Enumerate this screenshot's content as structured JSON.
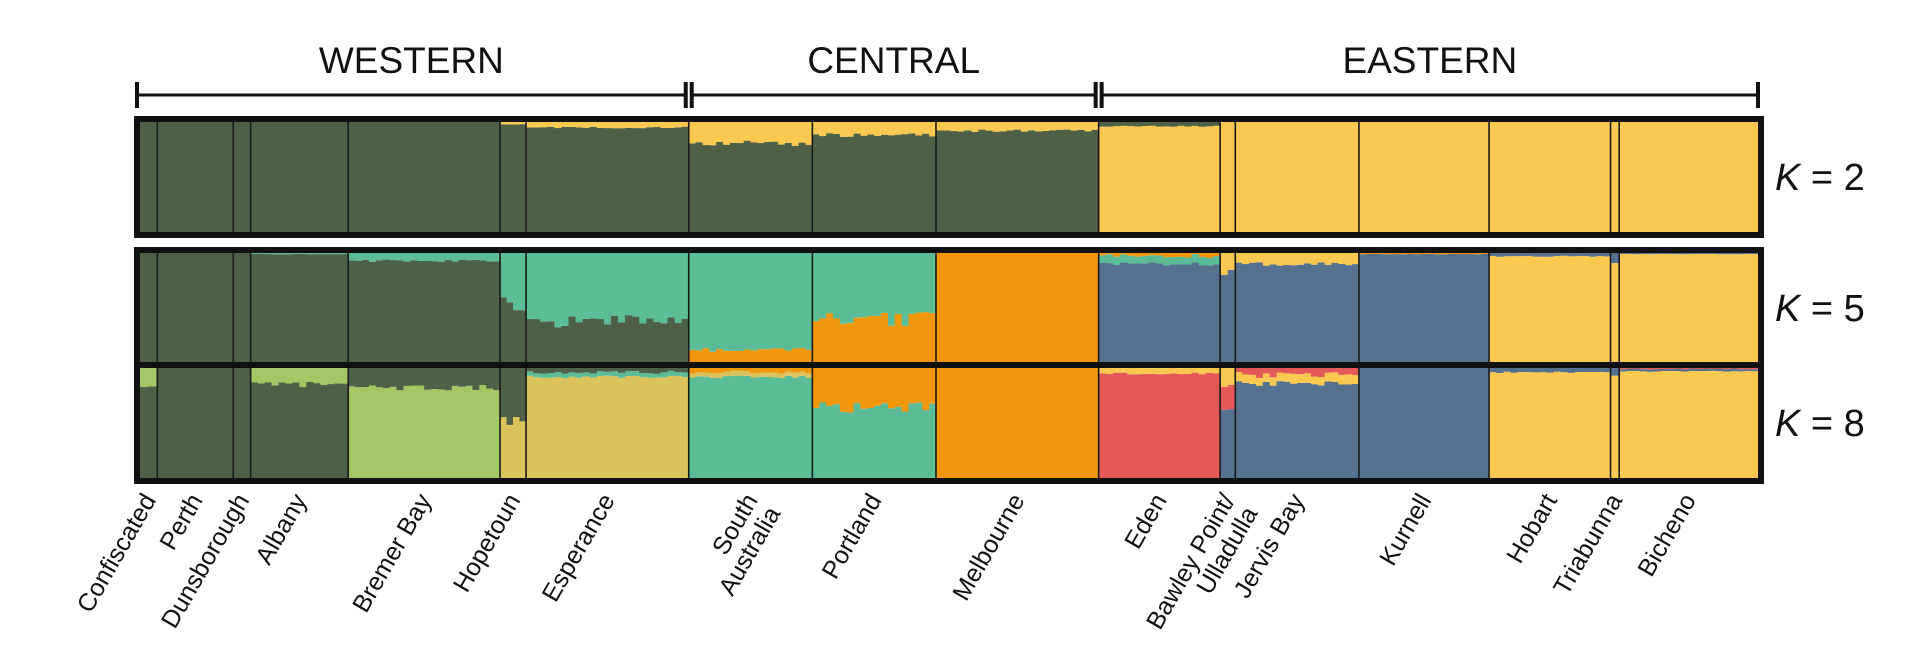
{
  "chart_data": {
    "type": "structure_bar",
    "title": "",
    "regions": [
      {
        "label": "WESTERN",
        "from": 0,
        "to": 6
      },
      {
        "label": "CENTRAL",
        "from": 7,
        "to": 9
      },
      {
        "label": "EASTERN",
        "from": 10,
        "to": 16
      }
    ],
    "populations": [
      {
        "name": "Confiscated",
        "label_lines": [
          "Confiscated"
        ],
        "n": 8
      },
      {
        "name": "Perth",
        "label_lines": [
          "Perth"
        ],
        "n": 35
      },
      {
        "name": "Dunsborough",
        "label_lines": [
          "Dunsborough"
        ],
        "n": 8
      },
      {
        "name": "Albany",
        "label_lines": [
          "Albany"
        ],
        "n": 45
      },
      {
        "name": "Bremer Bay",
        "label_lines": [
          "Bremer Bay"
        ],
        "n": 70
      },
      {
        "name": "Hopetoun",
        "label_lines": [
          "Hopetoun"
        ],
        "n": 12
      },
      {
        "name": "Esperance",
        "label_lines": [
          "Esperance"
        ],
        "n": 75
      },
      {
        "name": "South Australia",
        "label_lines": [
          "South",
          "Australia"
        ],
        "n": 57
      },
      {
        "name": "Portland",
        "label_lines": [
          "Portland"
        ],
        "n": 57
      },
      {
        "name": "Melbourne",
        "label_lines": [
          "Melbourne"
        ],
        "n": 75
      },
      {
        "name": "Eden",
        "label_lines": [
          "Eden"
        ],
        "n": 56
      },
      {
        "name": "Bawley Point/Ulladulla",
        "label_lines": [
          "Bawley Point/",
          "Ulladulla"
        ],
        "n": 7
      },
      {
        "name": "Jervis Bay",
        "label_lines": [
          "Jervis Bay"
        ],
        "n": 57
      },
      {
        "name": "Kurnell",
        "label_lines": [
          "Kurnell"
        ],
        "n": 60
      },
      {
        "name": "Hobart",
        "label_lines": [
          "Hobart"
        ],
        "n": 56
      },
      {
        "name": "Triabunna",
        "label_lines": [
          "Triabunna"
        ],
        "n": 4
      },
      {
        "name": "Bicheno",
        "label_lines": [
          "Bicheno"
        ],
        "n": 64
      }
    ],
    "cluster_colors": {
      "dark_green": "#4e6147",
      "yellow": "#fbc94f",
      "teal": "#5bbd98",
      "orange": "#f2960c",
      "slate_blue": "#56708f",
      "light_green": "#a3c765",
      "khaki": "#d9c35a",
      "red": "#e55858"
    },
    "panels": [
      {
        "k_label": "K = 2",
        "populations": [
          [
            [
              "dark_green",
              1.0
            ]
          ],
          [
            [
              "dark_green",
              1.0
            ]
          ],
          [
            [
              "dark_green",
              1.0
            ]
          ],
          [
            [
              "dark_green",
              1.0
            ]
          ],
          [
            [
              "dark_green",
              1.0
            ]
          ],
          [
            [
              "dark_green",
              0.98
            ],
            [
              "yellow",
              0.02
            ]
          ],
          [
            [
              "dark_green",
              0.95
            ],
            [
              "yellow",
              0.05
            ]
          ],
          [
            [
              "dark_green",
              0.8
            ],
            [
              "yellow",
              0.2
            ]
          ],
          [
            [
              "dark_green",
              0.88
            ],
            [
              "yellow",
              0.12
            ]
          ],
          [
            [
              "dark_green",
              0.92
            ],
            [
              "yellow",
              0.08
            ]
          ],
          [
            [
              "yellow",
              0.96
            ],
            [
              "dark_green",
              0.04
            ]
          ],
          [
            [
              "yellow",
              1.0
            ]
          ],
          [
            [
              "yellow",
              1.0
            ]
          ],
          [
            [
              "yellow",
              1.0
            ]
          ],
          [
            [
              "yellow",
              1.0
            ]
          ],
          [
            [
              "yellow",
              1.0
            ]
          ],
          [
            [
              "yellow",
              1.0
            ]
          ]
        ]
      },
      {
        "k_label": "K = 5",
        "populations": [
          [
            [
              "dark_green",
              1.0
            ]
          ],
          [
            [
              "dark_green",
              1.0
            ]
          ],
          [
            [
              "dark_green",
              1.0
            ]
          ],
          [
            [
              "dark_green",
              0.99
            ],
            [
              "teal",
              0.01
            ]
          ],
          [
            [
              "dark_green",
              0.93
            ],
            [
              "teal",
              0.07
            ]
          ],
          [
            [
              "dark_green",
              0.55
            ],
            [
              "teal",
              0.45
            ]
          ],
          [
            [
              "dark_green",
              0.38
            ],
            [
              "teal",
              0.62
            ]
          ],
          [
            [
              "orange",
              0.12
            ],
            [
              "teal",
              0.88
            ]
          ],
          [
            [
              "orange",
              0.4
            ],
            [
              "teal",
              0.6
            ]
          ],
          [
            [
              "orange",
              1.0
            ]
          ],
          [
            [
              "slate_blue",
              0.9
            ],
            [
              "teal",
              0.07
            ],
            [
              "orange",
              0.03
            ]
          ],
          [
            [
              "slate_blue",
              0.82
            ],
            [
              "yellow",
              0.18
            ]
          ],
          [
            [
              "slate_blue",
              0.9
            ],
            [
              "yellow",
              0.1
            ]
          ],
          [
            [
              "slate_blue",
              0.99
            ],
            [
              "orange",
              0.01
            ]
          ],
          [
            [
              "yellow",
              0.97
            ],
            [
              "slate_blue",
              0.03
            ]
          ],
          [
            [
              "yellow",
              0.92
            ],
            [
              "slate_blue",
              0.08
            ]
          ],
          [
            [
              "yellow",
              0.99
            ],
            [
              "slate_blue",
              0.01
            ]
          ]
        ]
      },
      {
        "k_label": "K = 8",
        "populations": [
          [
            [
              "dark_green",
              0.85
            ],
            [
              "light_green",
              0.15
            ]
          ],
          [
            [
              "dark_green",
              1.0
            ]
          ],
          [
            [
              "dark_green",
              1.0
            ]
          ],
          [
            [
              "dark_green",
              0.85
            ],
            [
              "light_green",
              0.15
            ]
          ],
          [
            [
              "light_green",
              0.82
            ],
            [
              "dark_green",
              0.18
            ]
          ],
          [
            [
              "khaki",
              0.5
            ],
            [
              "dark_green",
              0.5
            ]
          ],
          [
            [
              "khaki",
              0.92
            ],
            [
              "teal",
              0.04
            ],
            [
              "dark_green",
              0.04
            ]
          ],
          [
            [
              "teal",
              0.92
            ],
            [
              "khaki",
              0.04
            ],
            [
              "orange",
              0.04
            ]
          ],
          [
            [
              "teal",
              0.65
            ],
            [
              "orange",
              0.35
            ]
          ],
          [
            [
              "orange",
              1.0
            ]
          ],
          [
            [
              "red",
              0.95
            ],
            [
              "yellow",
              0.05
            ]
          ],
          [
            [
              "slate_blue",
              0.6
            ],
            [
              "red",
              0.2
            ],
            [
              "yellow",
              0.2
            ]
          ],
          [
            [
              "slate_blue",
              0.86
            ],
            [
              "yellow",
              0.08
            ],
            [
              "red",
              0.06
            ]
          ],
          [
            [
              "slate_blue",
              1.0
            ]
          ],
          [
            [
              "yellow",
              0.96
            ],
            [
              "slate_blue",
              0.04
            ]
          ],
          [
            [
              "yellow",
              0.94
            ],
            [
              "slate_blue",
              0.06
            ]
          ],
          [
            [
              "yellow",
              0.97
            ],
            [
              "slate_blue",
              0.02
            ],
            [
              "red",
              0.01
            ]
          ]
        ]
      }
    ]
  }
}
